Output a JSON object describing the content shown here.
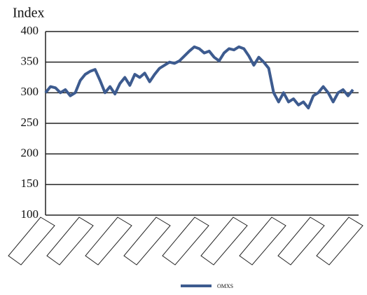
{
  "chart_data": {
    "type": "line",
    "y_title": "Index",
    "categories": [
      null,
      null,
      null,
      null,
      null,
      null,
      null,
      null,
      null,
      null,
      null,
      null,
      null,
      null,
      null,
      null,
      null,
      null,
      null,
      null,
      null,
      null,
      null,
      null,
      null,
      null,
      null,
      null,
      null,
      null,
      null,
      null,
      null,
      null,
      null,
      null,
      null,
      null,
      null,
      null,
      null,
      null,
      null,
      null,
      null,
      null,
      null,
      null,
      null,
      null,
      null,
      null,
      null,
      null,
      null,
      null,
      null,
      null,
      null,
      null,
      null,
      null,
      null
    ],
    "series": [
      {
        "name": "OMXS",
        "color": "#3d5b8f",
        "values": [
          300,
          310,
          308,
          300,
          305,
          295,
          300,
          320,
          330,
          335,
          338,
          320,
          300,
          310,
          298,
          315,
          325,
          312,
          330,
          325,
          332,
          318,
          330,
          340,
          345,
          350,
          348,
          352,
          360,
          368,
          375,
          372,
          365,
          368,
          358,
          352,
          365,
          372,
          370,
          375,
          372,
          360,
          345,
          358,
          350,
          340,
          300,
          285,
          300,
          285,
          290,
          280,
          285,
          275,
          295,
          300,
          310,
          300,
          285,
          300,
          305,
          295,
          305
        ]
      }
    ],
    "ylim": [
      100,
      400
    ],
    "yticks": [
      100,
      150,
      200,
      250,
      300,
      350,
      400
    ],
    "grid": true
  }
}
